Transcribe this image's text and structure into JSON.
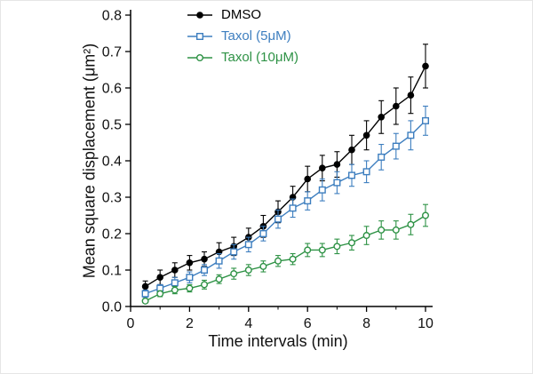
{
  "chart_data": {
    "type": "line",
    "title": "",
    "xlabel": "Time intervals (min)",
    "ylabel": "Mean square displacement (μm²)",
    "xlim": [
      0,
      10
    ],
    "ylim": [
      0,
      0.8
    ],
    "x_ticks": [
      0,
      2,
      4,
      6,
      8,
      10
    ],
    "x_minor_ticks": [
      1,
      3,
      5,
      7,
      9
    ],
    "y_ticks": [
      0,
      0.1,
      0.2,
      0.3,
      0.4,
      0.5,
      0.6,
      0.7,
      0.8
    ],
    "grid": false,
    "legend_position": "upper-left",
    "x": [
      0.5,
      1.0,
      1.5,
      2.0,
      2.5,
      3.0,
      3.5,
      4.0,
      4.5,
      5.0,
      5.5,
      6.0,
      6.5,
      7.0,
      7.5,
      8.0,
      8.5,
      9.0,
      9.5,
      10.0
    ],
    "series": [
      {
        "name": "DMSO",
        "color": "#000000",
        "marker": "circle-filled",
        "values": [
          0.055,
          0.08,
          0.1,
          0.12,
          0.13,
          0.15,
          0.165,
          0.19,
          0.22,
          0.26,
          0.3,
          0.35,
          0.38,
          0.39,
          0.43,
          0.47,
          0.52,
          0.55,
          0.58,
          0.66
        ],
        "errors": [
          0.015,
          0.02,
          0.02,
          0.02,
          0.02,
          0.025,
          0.025,
          0.025,
          0.03,
          0.03,
          0.03,
          0.035,
          0.035,
          0.035,
          0.04,
          0.04,
          0.045,
          0.05,
          0.05,
          0.06
        ]
      },
      {
        "name": "Taxol (5μM)",
        "color": "#3d7ebf",
        "marker": "square-open",
        "values": [
          0.035,
          0.05,
          0.065,
          0.08,
          0.1,
          0.125,
          0.15,
          0.17,
          0.2,
          0.24,
          0.27,
          0.29,
          0.32,
          0.34,
          0.36,
          0.37,
          0.41,
          0.44,
          0.47,
          0.51
        ],
        "errors": [
          0.01,
          0.01,
          0.015,
          0.015,
          0.015,
          0.02,
          0.02,
          0.02,
          0.02,
          0.025,
          0.025,
          0.025,
          0.03,
          0.03,
          0.03,
          0.03,
          0.035,
          0.035,
          0.04,
          0.04
        ]
      },
      {
        "name": "Taxol (10μM)",
        "color": "#2e9245",
        "marker": "circle-open",
        "values": [
          0.015,
          0.035,
          0.045,
          0.05,
          0.06,
          0.075,
          0.09,
          0.1,
          0.11,
          0.125,
          0.13,
          0.155,
          0.155,
          0.165,
          0.175,
          0.195,
          0.21,
          0.21,
          0.225,
          0.25
        ],
        "errors": [
          0.005,
          0.008,
          0.01,
          0.01,
          0.012,
          0.012,
          0.015,
          0.015,
          0.015,
          0.015,
          0.015,
          0.018,
          0.018,
          0.02,
          0.02,
          0.025,
          0.025,
          0.025,
          0.028,
          0.03
        ]
      }
    ]
  }
}
